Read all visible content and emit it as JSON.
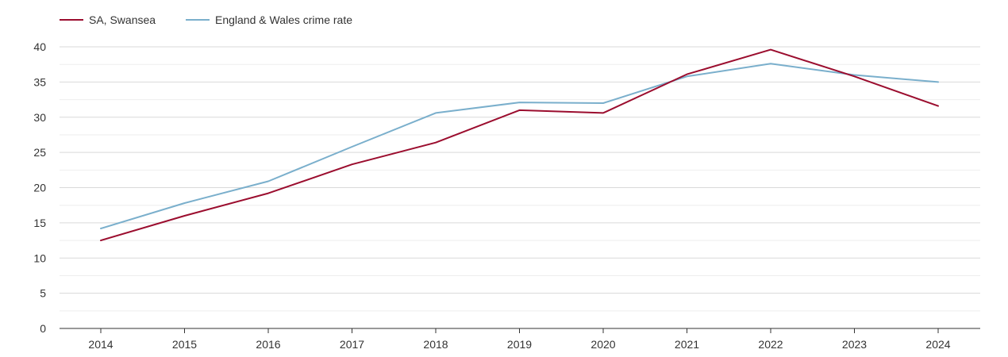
{
  "chart_data": {
    "type": "line",
    "categories": [
      "2014",
      "2015",
      "2016",
      "2017",
      "2018",
      "2019",
      "2020",
      "2021",
      "2022",
      "2023",
      "2024"
    ],
    "series": [
      {
        "name": "SA, Swansea",
        "color": "#9b0d2e",
        "values": [
          12.5,
          16.0,
          19.2,
          23.3,
          26.4,
          31.0,
          30.6,
          36.1,
          39.6,
          35.8,
          31.6
        ]
      },
      {
        "name": "England & Wales crime rate",
        "color": "#7aafcc",
        "values": [
          14.2,
          17.8,
          20.9,
          25.8,
          30.6,
          32.1,
          32.0,
          35.8,
          37.6,
          36.0,
          35.0
        ]
      }
    ],
    "ylim": [
      0,
      40
    ],
    "yticks": [
      "0",
      "5",
      "10",
      "15",
      "20",
      "25",
      "30",
      "35",
      "40"
    ],
    "grid": true,
    "legend_position": "top-left"
  }
}
